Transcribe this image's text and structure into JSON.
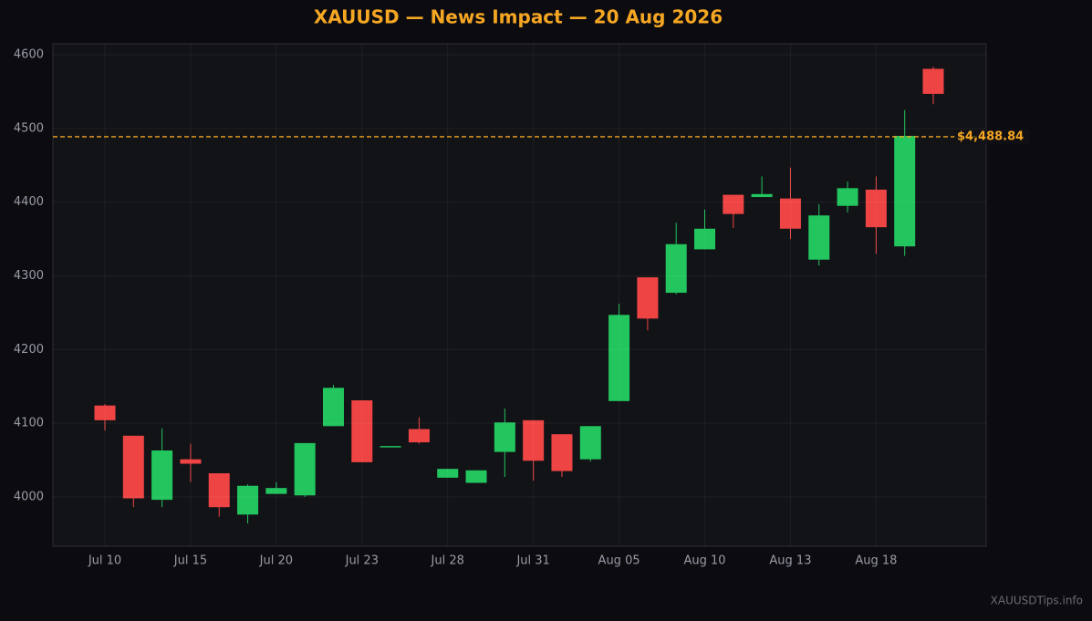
{
  "chart_data": {
    "type": "candlestick",
    "title": "XAUUSD — News Impact — 20 Aug 2026",
    "categories": [
      "Jul 10",
      null,
      null,
      "Jul 15",
      null,
      null,
      "Jul 20",
      null,
      null,
      "Jul 23",
      null,
      null,
      "Jul 28",
      null,
      null,
      "Jul 31",
      null,
      null,
      "Aug 05",
      null,
      null,
      "Aug 10",
      null,
      null,
      "Aug 13",
      null,
      null,
      "Aug 18",
      null,
      null
    ],
    "series": [
      {
        "open": [
          4124,
          4083,
          3996,
          4051,
          4032,
          3976,
          4004,
          4002,
          4096,
          4131,
          4068,
          4092,
          4026,
          4019,
          4061,
          4104,
          4085,
          4051,
          4130,
          4298,
          4277,
          4336,
          4410,
          4407,
          4405,
          4322,
          4395,
          4417,
          4340,
          4581
        ],
        "high": [
          4126,
          4083,
          4093,
          4072,
          4032,
          4017,
          4020,
          4073,
          4152,
          4131,
          4069,
          4108,
          4038,
          4036,
          4120,
          4104,
          4085,
          4096,
          4262,
          4298,
          4372,
          4390,
          4410,
          4435,
          4447,
          4397,
          4428,
          4435,
          4525,
          4584
        ],
        "low": [
          4090,
          3986,
          3986,
          4020,
          3973,
          3964,
          4004,
          4000,
          4096,
          4047,
          4068,
          4072,
          4026,
          4019,
          4027,
          4022,
          4027,
          4048,
          4130,
          4226,
          4275,
          4336,
          4365,
          4407,
          4350,
          4314,
          4386,
          4330,
          4327,
          4533
        ],
        "close": [
          4104,
          3998,
          4063,
          4045,
          3986,
          4015,
          4012,
          4073,
          4148,
          4047,
          4069,
          4074,
          4038,
          4036,
          4101,
          4049,
          4035,
          4096,
          4247,
          4242,
          4343,
          4364,
          4384,
          4411,
          4364,
          4382,
          4419,
          4366,
          4490,
          4547
        ],
        "up_color": "#22c55e",
        "down_color": "#ef4444"
      }
    ],
    "ylim": [
      3933,
      4615
    ],
    "yticks": [
      4000,
      4100,
      4200,
      4300,
      4400,
      4500,
      4600
    ],
    "grid": true,
    "reference_line": {
      "value": 4488.84,
      "label": "$4,488.84",
      "color": "#f5a623"
    },
    "watermark": "XAUUSDTips.info"
  }
}
